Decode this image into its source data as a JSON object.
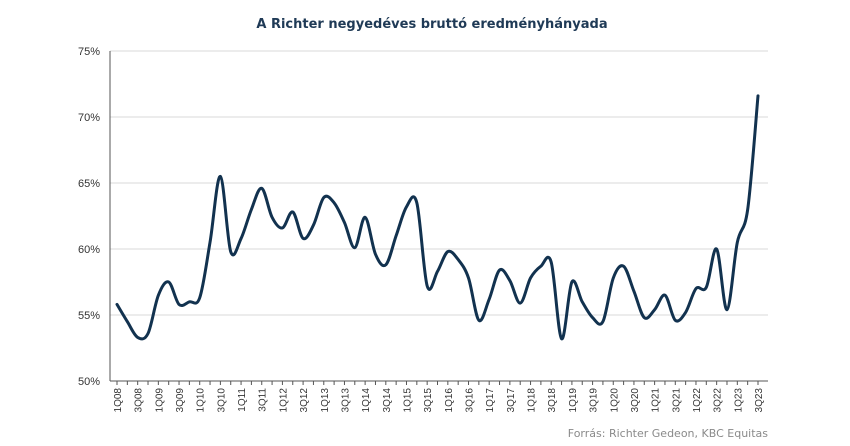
{
  "chart_data": {
    "type": "line",
    "title": "A Richter negyedéves bruttó eredményhányada",
    "source": "Forrás: Richter Gedeon, KBC Equitas",
    "xlabel": "",
    "ylabel": "",
    "ylim": [
      50,
      75
    ],
    "yticks": [
      50,
      55,
      60,
      65,
      70,
      75
    ],
    "ytick_labels": [
      "50%",
      "55%",
      "60%",
      "65%",
      "70%",
      "75%"
    ],
    "grid": true,
    "line_color": "#12324f",
    "categories": [
      "1Q08",
      "2Q08",
      "3Q08",
      "4Q08",
      "1Q09",
      "2Q09",
      "3Q09",
      "4Q09",
      "1Q10",
      "2Q10",
      "3Q10",
      "4Q10",
      "1Q11",
      "2Q11",
      "3Q11",
      "4Q11",
      "1Q12",
      "2Q12",
      "3Q12",
      "4Q12",
      "1Q13",
      "2Q13",
      "3Q13",
      "4Q13",
      "1Q14",
      "2Q14",
      "3Q14",
      "4Q14",
      "1Q15",
      "2Q15",
      "3Q15",
      "4Q15",
      "1Q16",
      "2Q16",
      "3Q16",
      "4Q16",
      "1Q17",
      "2Q17",
      "3Q17",
      "4Q17",
      "1Q18",
      "2Q18",
      "3Q18",
      "4Q18",
      "1Q19",
      "2Q19",
      "3Q19",
      "4Q19",
      "1Q20",
      "2Q20",
      "3Q20",
      "4Q20",
      "1Q21",
      "2Q21",
      "3Q21",
      "4Q21",
      "1Q22",
      "2Q22",
      "3Q22",
      "4Q22",
      "1Q23",
      "2Q23",
      "3Q23"
    ],
    "xtick_labels": [
      "1Q08",
      "3Q08",
      "1Q09",
      "3Q09",
      "1Q10",
      "3Q10",
      "1Q11",
      "3Q11",
      "1Q12",
      "3Q12",
      "1Q13",
      "3Q13",
      "1Q14",
      "3Q14",
      "1Q15",
      "3Q15",
      "1Q16",
      "3Q16",
      "1Q17",
      "3Q17",
      "1Q18",
      "3Q18",
      "1Q19",
      "3Q19",
      "1Q20",
      "3Q20",
      "1Q21",
      "3Q21",
      "1Q22",
      "3Q22",
      "1Q23",
      "3Q23"
    ],
    "series": [
      {
        "values": [
          55.8,
          54.5,
          53.3,
          53.6,
          56.5,
          57.5,
          55.8,
          56.0,
          56.3,
          60.5,
          65.5,
          59.8,
          60.8,
          63.0,
          64.6,
          62.4,
          61.6,
          62.8,
          60.8,
          61.8,
          63.9,
          63.5,
          62.0,
          60.1,
          62.4,
          59.6,
          58.8,
          61.0,
          63.2,
          63.5,
          57.2,
          58.3,
          59.8,
          59.2,
          57.8,
          54.6,
          56.2,
          58.4,
          57.6,
          55.9,
          57.8,
          58.7,
          59.0,
          53.2,
          57.5,
          56.0,
          54.8,
          54.5,
          57.8,
          58.7,
          56.8,
          54.8,
          55.4,
          56.5,
          54.6,
          55.2,
          57.0,
          57.1,
          60.0,
          55.4,
          60.5,
          63.0,
          71.6
        ]
      }
    ]
  }
}
